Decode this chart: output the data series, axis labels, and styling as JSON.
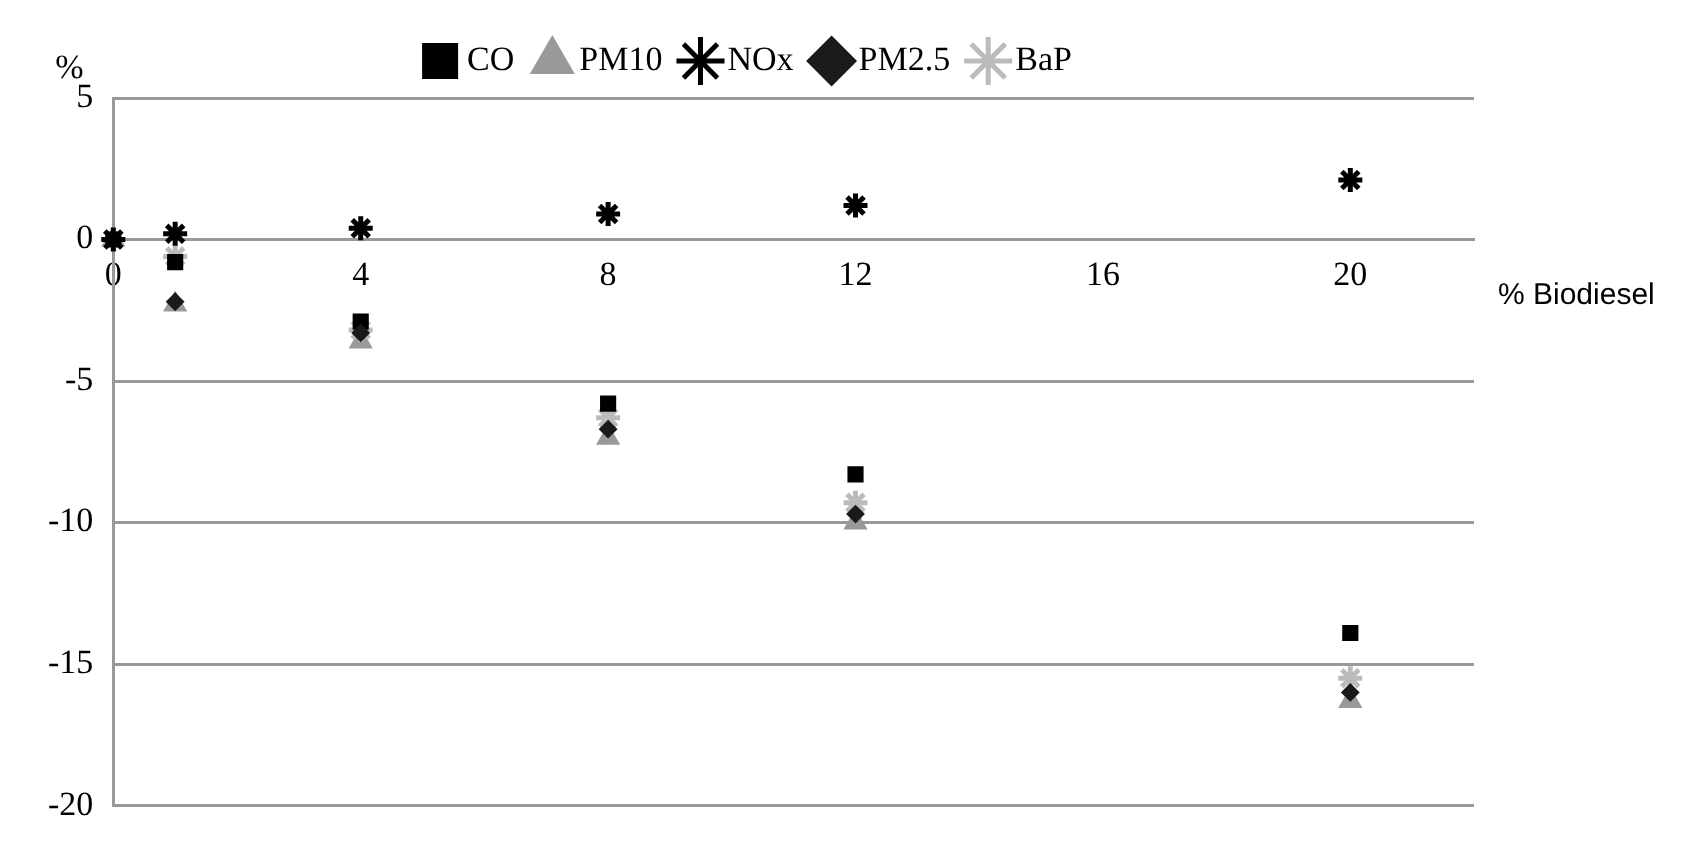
{
  "chart_data": {
    "type": "scatter",
    "xlabel": "% Biodiesel",
    "ylabel": "%",
    "xlim": [
      0,
      22
    ],
    "xticks": [
      0,
      4,
      8,
      12,
      16,
      20
    ],
    "ylim": [
      -20,
      5
    ],
    "yticks": [
      -20,
      -15,
      -10,
      -5,
      0,
      5
    ],
    "grid": "y",
    "legend": "top",
    "x": [
      0,
      1,
      4,
      8,
      12,
      20
    ],
    "series": [
      {
        "name": "CO",
        "color": "#000000",
        "marker": "square",
        "values": [
          0,
          -0.8,
          -2.9,
          -5.8,
          -8.3,
          -13.9
        ]
      },
      {
        "name": "PM10",
        "color": "#999999",
        "marker": "triangle",
        "values": [
          0,
          -2.3,
          -3.6,
          -7.0,
          -10.0,
          -16.3
        ]
      },
      {
        "name": "NOx",
        "color": "#000000",
        "marker": "cross",
        "values": [
          0,
          0.2,
          0.4,
          0.9,
          1.2,
          2.1
        ]
      },
      {
        "name": "PM2.5",
        "color": "#1a1a1a",
        "marker": "diamond",
        "values": [
          null,
          -2.2,
          -3.3,
          -6.7,
          -9.7,
          -16.0
        ]
      },
      {
        "name": "BaP",
        "color": "#bbbbbb",
        "marker": "cross",
        "values": [
          0,
          -0.6,
          -3.2,
          -6.3,
          -9.3,
          -15.5
        ]
      }
    ]
  }
}
